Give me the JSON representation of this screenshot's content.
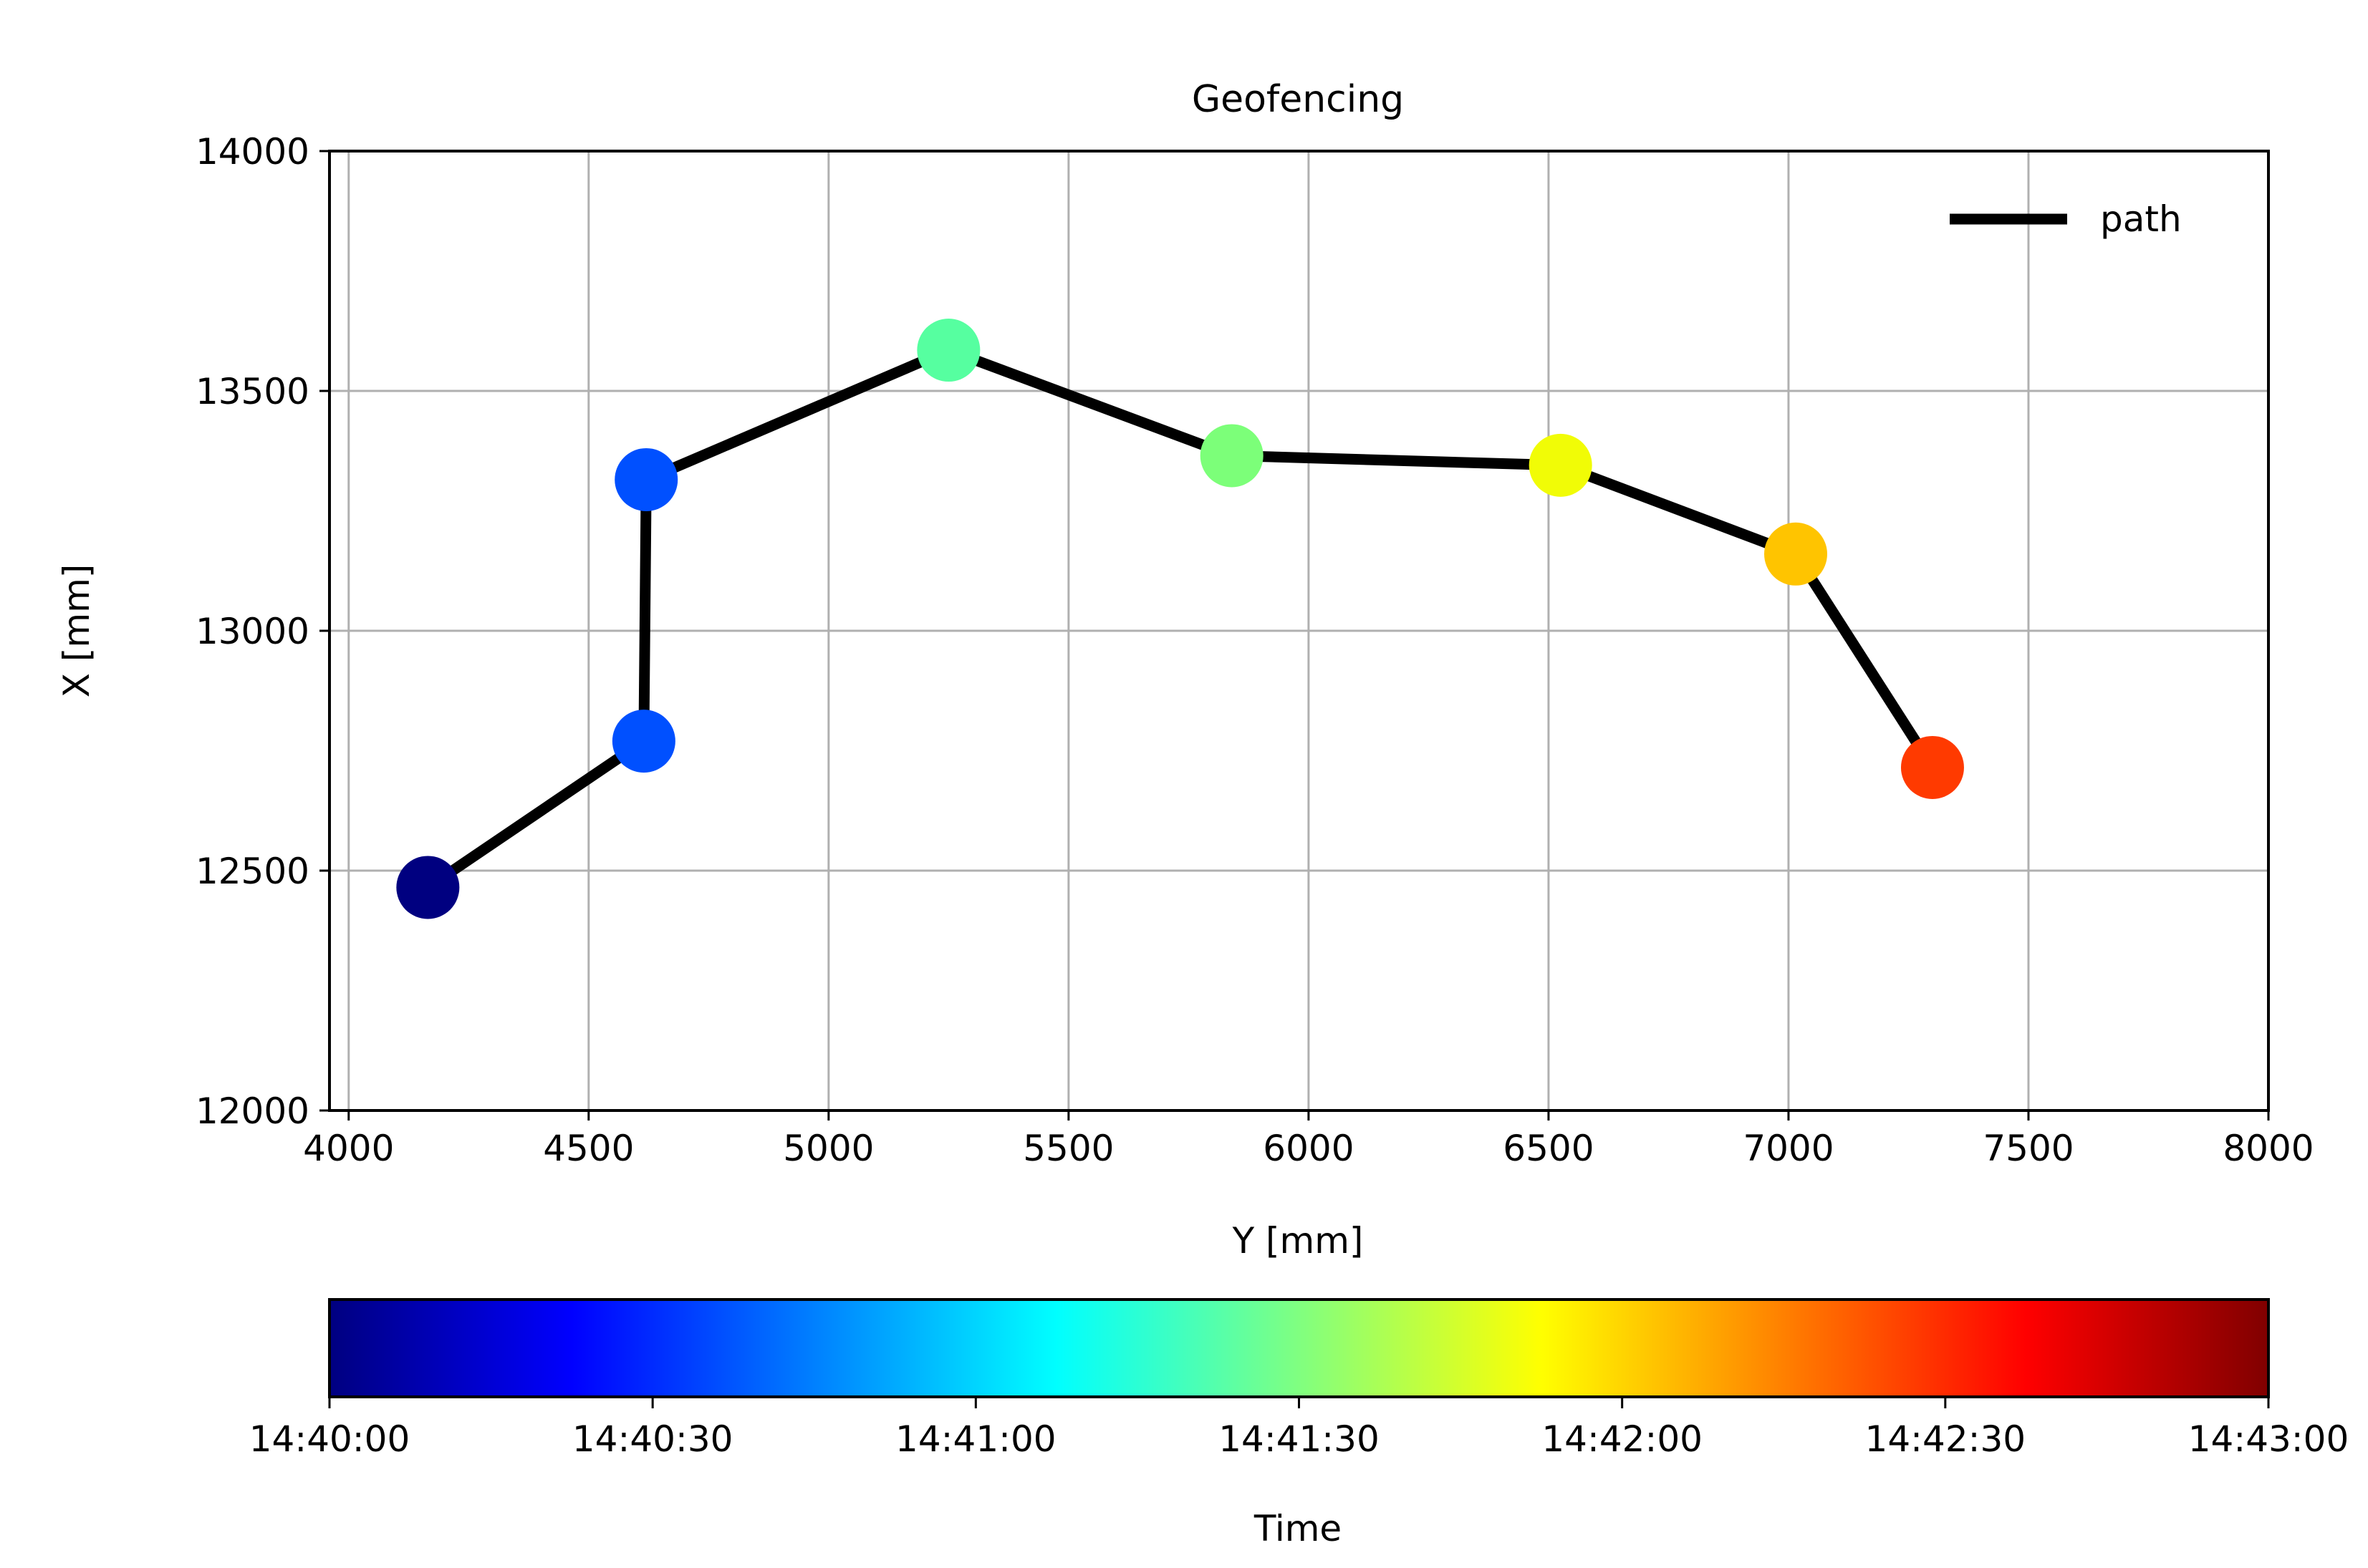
{
  "chart_data": {
    "type": "line",
    "title": "Geofencing",
    "xlabel": "Y [mm]",
    "ylabel": "X [mm]",
    "xlim": [
      3960,
      8000
    ],
    "ylim": [
      12000,
      14000
    ],
    "xticks": [
      4000,
      4500,
      5000,
      5500,
      6000,
      6500,
      7000,
      7500,
      8000
    ],
    "yticks": [
      12000,
      12500,
      13000,
      13500,
      14000
    ],
    "grid": true,
    "legend": {
      "position": "top-right",
      "entries": [
        "path"
      ]
    },
    "series": [
      {
        "name": "path",
        "color": "#000000",
        "points": [
          {
            "y_mm": 4165,
            "x_mm": 12465,
            "time": "14:40:00"
          },
          {
            "y_mm": 4615,
            "x_mm": 12770,
            "time": "14:40:40"
          },
          {
            "y_mm": 4620,
            "x_mm": 13315,
            "time": "14:40:45"
          },
          {
            "y_mm": 5250,
            "x_mm": 13585,
            "time": "14:41:10"
          },
          {
            "y_mm": 5840,
            "x_mm": 13365,
            "time": "14:41:20"
          },
          {
            "y_mm": 6525,
            "x_mm": 13345,
            "time": "14:41:55"
          },
          {
            "y_mm": 7015,
            "x_mm": 13160,
            "time": "14:42:05"
          },
          {
            "y_mm": 7300,
            "x_mm": 12715,
            "time": "14:42:30"
          }
        ]
      }
    ],
    "marker_colors": [
      "#000080",
      "#0050ff",
      "#0050ff",
      "#56ffa0",
      "#7cff79",
      "#f1fc06",
      "#ffc400",
      "#ff3a00"
    ],
    "colorbar": {
      "label": "Time",
      "colormap": "jet",
      "ticks": [
        "14:40:00",
        "14:40:30",
        "14:41:00",
        "14:41:30",
        "14:42:00",
        "14:42:30",
        "14:43:00"
      ],
      "stops": [
        "#000080",
        "#0000ff",
        "#0080ff",
        "#00ffff",
        "#80ff80",
        "#ffff00",
        "#ff8000",
        "#ff0000",
        "#800000"
      ]
    }
  }
}
